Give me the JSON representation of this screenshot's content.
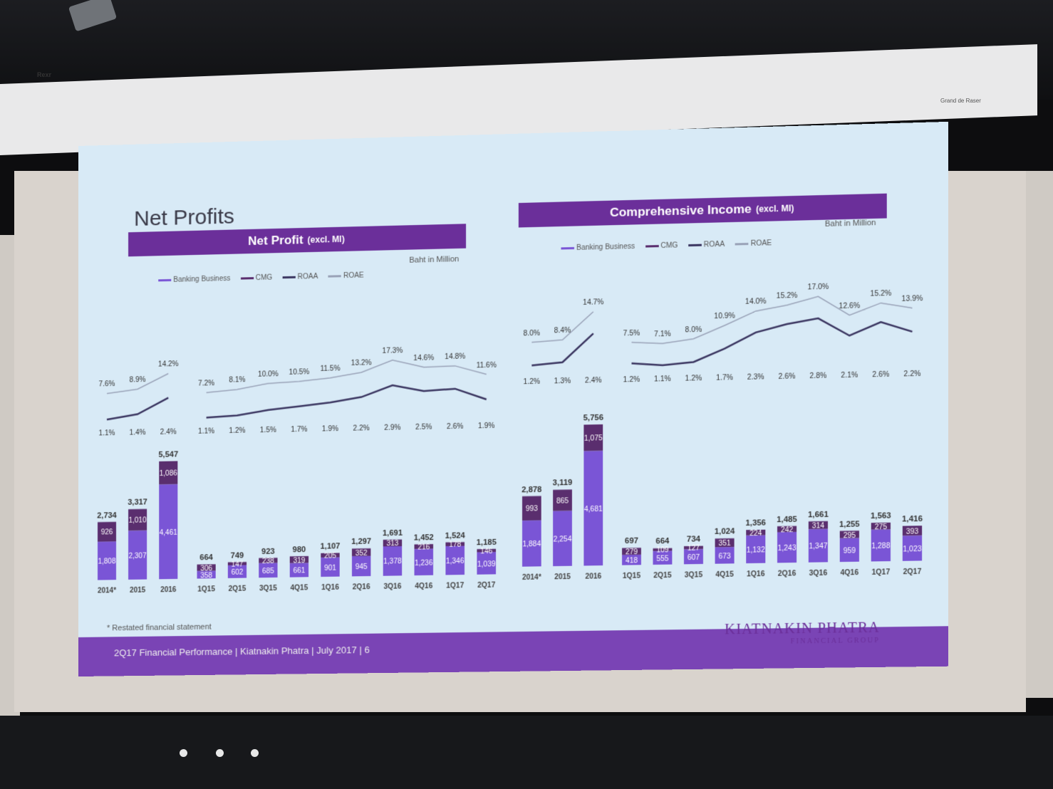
{
  "slide": {
    "title": "Net Profits",
    "unit_label": "Baht in Million",
    "footnote": "* Restated financial statement",
    "footer": "2Q17 Financial Performance | Kiatnakin Phatra | July 2017 | 6",
    "brand_name": "KIATNAKIN PHATRA",
    "brand_sub": "FINANCIAL GROUP",
    "housing_left": "Rexr",
    "housing_right": "Grand de Raser"
  },
  "legend": [
    "Banking Business",
    "CMG",
    "ROAA",
    "ROAE"
  ],
  "colors": {
    "banking": "#7a55d6",
    "cmg": "#5a2e6e",
    "roaa": "#3a3560",
    "roae": "#9aa3b8",
    "band": "#6b2f9a"
  },
  "chart_data": [
    {
      "type": "bar",
      "title": "Net Profit",
      "title_suffix": "(excl. MI)",
      "categories": [
        "2014*",
        "2015",
        "2016",
        "1Q15",
        "2Q15",
        "3Q15",
        "4Q15",
        "1Q16",
        "2Q16",
        "3Q16",
        "4Q16",
        "1Q17",
        "2Q17"
      ],
      "series": [
        {
          "name": "Banking Business",
          "values": [
            1808,
            2307,
            4461,
            358,
            602,
            685,
            661,
            901,
            945,
            1378,
            1236,
            1346,
            1039
          ]
        },
        {
          "name": "CMG",
          "values": [
            926,
            1010,
            1086,
            306,
            147,
            238,
            319,
            205,
            352,
            313,
            216,
            178,
            146
          ]
        }
      ],
      "totals": [
        2734,
        3317,
        5547,
        664,
        749,
        923,
        980,
        1107,
        1297,
        1691,
        1452,
        1524,
        1185
      ],
      "lines": [
        {
          "name": "ROAE",
          "values": [
            "7.6%",
            "8.9%",
            "14.2%",
            "7.2%",
            "8.1%",
            "10.0%",
            "10.5%",
            "11.5%",
            "13.2%",
            "17.3%",
            "14.6%",
            "14.8%",
            "11.6%"
          ]
        },
        {
          "name": "ROAA",
          "values": [
            "1.1%",
            "1.4%",
            "2.4%",
            "1.1%",
            "1.2%",
            "1.5%",
            "1.7%",
            "1.9%",
            "2.2%",
            "2.9%",
            "2.5%",
            "2.6%",
            "1.9%"
          ]
        }
      ]
    },
    {
      "type": "bar",
      "title": "Comprehensive Income",
      "title_suffix": "(excl. MI)",
      "categories": [
        "2014*",
        "2015",
        "2016",
        "1Q15",
        "2Q15",
        "3Q15",
        "4Q15",
        "1Q16",
        "2Q16",
        "3Q16",
        "4Q16",
        "1Q17",
        "2Q17"
      ],
      "series": [
        {
          "name": "Banking Business",
          "values": [
            1884,
            2254,
            4681,
            418,
            555,
            607,
            673,
            1132,
            1243,
            1347,
            959,
            1288,
            1023
          ]
        },
        {
          "name": "CMG",
          "values": [
            993,
            865,
            1075,
            279,
            109,
            127,
            351,
            224,
            242,
            314,
            295,
            275,
            393
          ]
        }
      ],
      "totals": [
        2878,
        3119,
        5756,
        697,
        664,
        734,
        1024,
        1356,
        1485,
        1661,
        1255,
        1563,
        1416
      ],
      "lines": [
        {
          "name": "ROAE",
          "values": [
            "8.0%",
            "8.4%",
            "14.7%",
            "7.5%",
            "7.1%",
            "8.0%",
            "10.9%",
            "14.0%",
            "15.2%",
            "17.0%",
            "12.6%",
            "15.2%",
            "13.9%"
          ]
        },
        {
          "name": "ROAA",
          "values": [
            "1.2%",
            "1.3%",
            "2.4%",
            "1.2%",
            "1.1%",
            "1.2%",
            "1.7%",
            "2.3%",
            "2.6%",
            "2.8%",
            "2.1%",
            "2.6%",
            "2.2%"
          ]
        }
      ]
    }
  ]
}
